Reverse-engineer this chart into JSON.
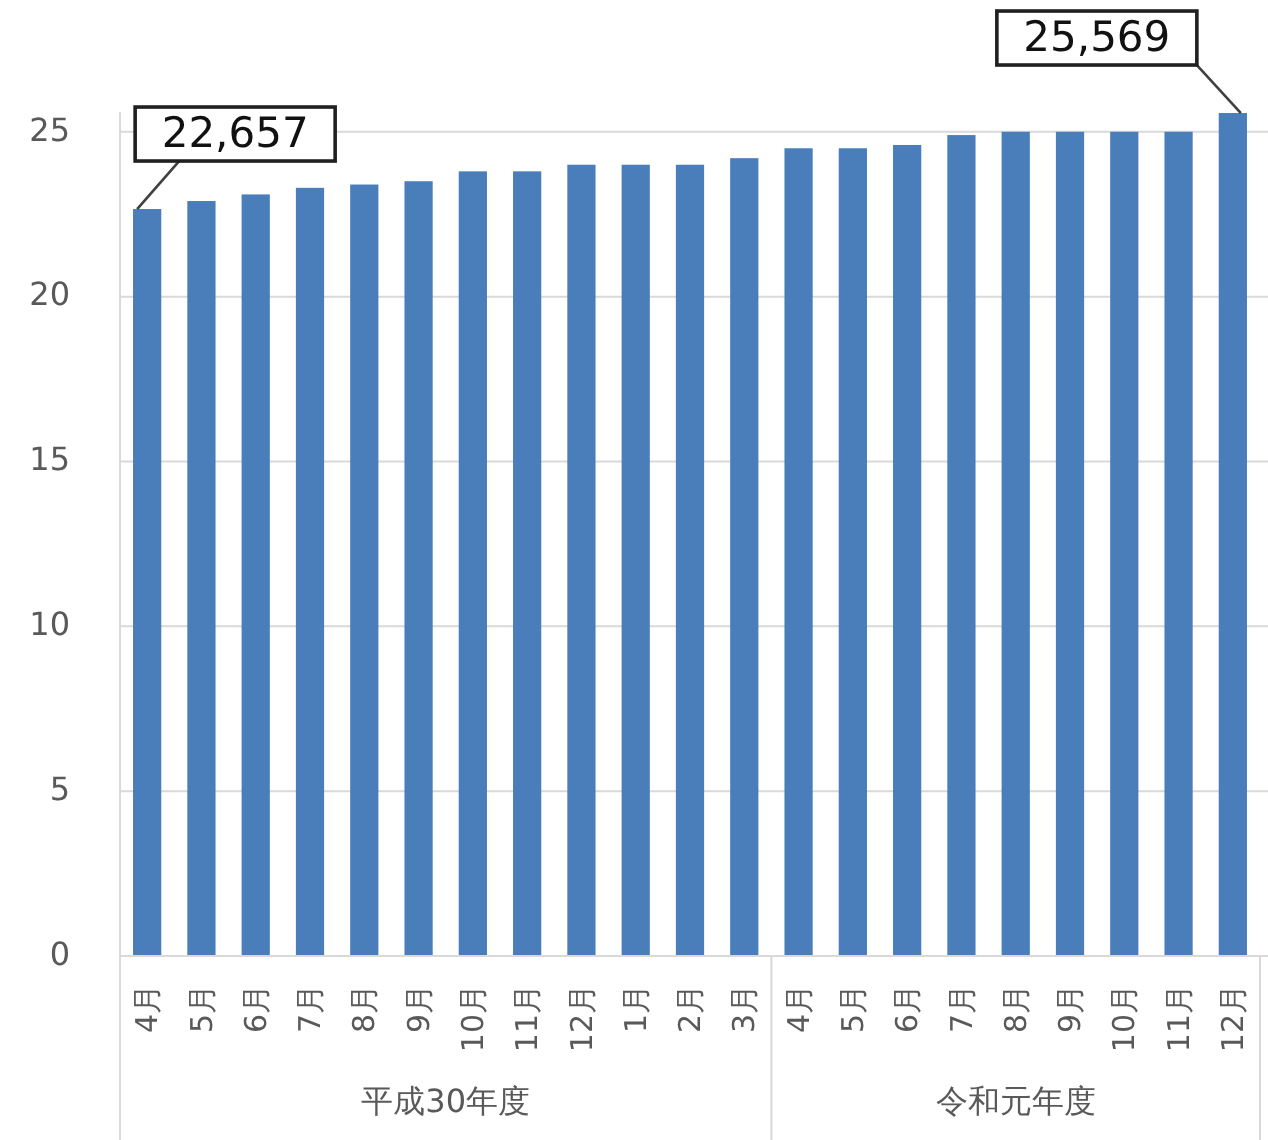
{
  "chart_data": {
    "type": "bar",
    "categories": [
      "4月",
      "5月",
      "6月",
      "7月",
      "8月",
      "9月",
      "10月",
      "11月",
      "12月",
      "1月",
      "2月",
      "3月",
      "4月",
      "5月",
      "6月",
      "7月",
      "8月",
      "9月",
      "10月",
      "11月",
      "12月"
    ],
    "values": [
      22.657,
      22.9,
      23.1,
      23.3,
      23.4,
      23.5,
      23.8,
      23.8,
      24.0,
      24.0,
      24.0,
      24.2,
      24.5,
      24.5,
      24.6,
      24.9,
      25.0,
      25.0,
      25.0,
      25.0,
      25.569
    ],
    "color": "#4a7ebb",
    "ylim": [
      0,
      25.6
    ],
    "yticks": [
      0,
      5,
      10,
      15,
      20,
      25
    ],
    "grid": "y",
    "annotations": [
      {
        "text": "22,657",
        "x": "4月",
        "y": 22.657
      },
      "25,569",
      "平成30年度",
      "令和元年度"
    ]
  }
}
